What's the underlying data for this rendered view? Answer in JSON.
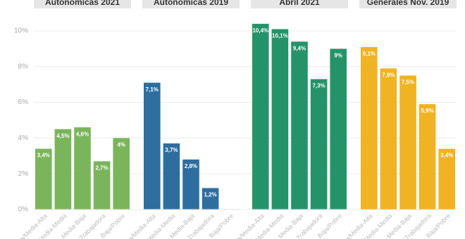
{
  "chart_data": [
    {
      "type": "bar",
      "title": "Autonomicas 2021",
      "categories": [
        "Alta/Media-Alta",
        "Media-Media",
        "Media-Baja",
        "Trabajadora",
        "Baja/Pobre"
      ],
      "values": [
        3.4,
        4.5,
        4.6,
        2.7,
        4
      ],
      "value_labels": [
        "3,4%",
        "4,5%",
        "4,6%",
        "2,7%",
        "4%"
      ],
      "color": "#7ab55c",
      "ylim": [
        0,
        10.5
      ],
      "yticks": [
        {
          "value": 0,
          "label": "0%"
        },
        {
          "value": 2,
          "label": "2%"
        },
        {
          "value": 4,
          "label": "4%"
        },
        {
          "value": 6,
          "label": "6%"
        },
        {
          "value": 8,
          "label": "8%"
        },
        {
          "value": 10,
          "label": "10%"
        }
      ],
      "grid": true
    },
    {
      "type": "bar",
      "title": "Autonomicas 2019",
      "categories": [
        "Alta/Media-Alta",
        "Media-Media",
        "Media-Baja",
        "Trabajadora",
        "Baja/Pobre"
      ],
      "values": [
        7.1,
        3.7,
        2.8,
        1.2,
        null
      ],
      "value_labels": [
        "7,1%",
        "3,7%",
        "2,8%",
        "1,2%",
        null
      ],
      "color": "#2e6e9e",
      "ylim": [
        0,
        10.5
      ]
    },
    {
      "type": "bar",
      "title": "Abril 2021",
      "categories": [
        "Alta/Media-Alta",
        "Media-Media",
        "Media-Baja",
        "Trabajadora",
        "Baja/Pobre"
      ],
      "values": [
        10.4,
        10.1,
        9.4,
        7.3,
        9
      ],
      "value_labels": [
        "10,4%",
        "10,1%",
        "9,4%",
        "7,3%",
        "9%"
      ],
      "color": "#25936a",
      "ylim": [
        0,
        10.5
      ]
    },
    {
      "type": "bar",
      "title": "Generales Nov. 2019",
      "categories": [
        "Alta/Media-Alta",
        "Media-Media",
        "Media-Baja",
        "Trabajadora",
        "Baja/Pobre"
      ],
      "values": [
        9.1,
        7.9,
        7.5,
        5.9,
        3.4
      ],
      "value_labels": [
        "9,1%",
        "7,9%",
        "7,5%",
        "5,9%",
        "3,4%"
      ],
      "color": "#efb324",
      "ylim": [
        0,
        10.5
      ]
    }
  ]
}
